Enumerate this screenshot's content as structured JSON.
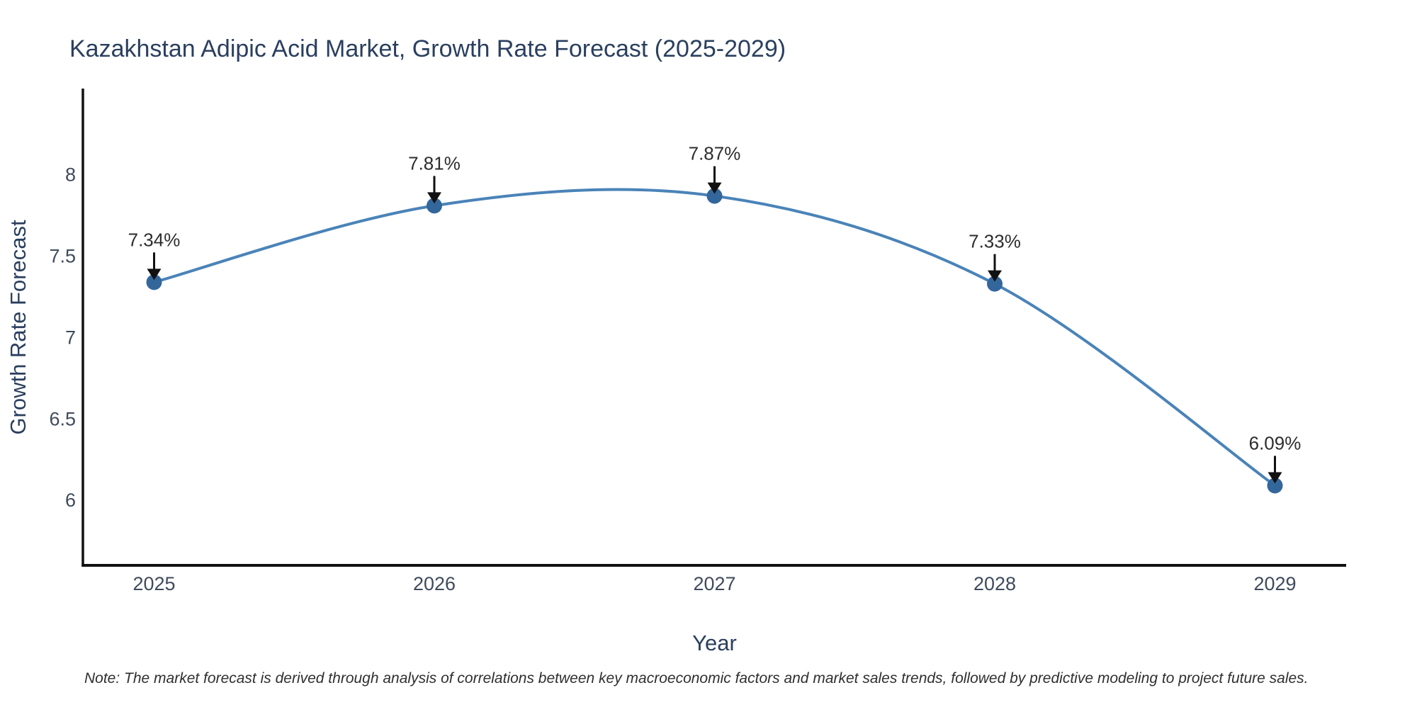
{
  "chart_data": {
    "type": "line",
    "title": "Kazakhstan Adipic Acid Market, Growth Rate Forecast (2025-2029)",
    "xlabel": "Year",
    "ylabel": "Growth Rate Forecast",
    "categories": [
      "2025",
      "2026",
      "2027",
      "2028",
      "2029"
    ],
    "values": [
      7.34,
      7.81,
      7.87,
      7.33,
      6.09
    ],
    "point_labels": [
      "7.34%",
      "7.81%",
      "7.87%",
      "7.33%",
      "6.09%"
    ],
    "y_ticks": [
      6,
      6.5,
      7,
      7.5,
      8
    ],
    "ylim": [
      5.6,
      8.53
    ],
    "line_shape": "spline",
    "markers": true,
    "grid": false,
    "legend_position": "none",
    "colors": {
      "line": "#4a83b8",
      "marker": "#33679b",
      "axis": "#111111",
      "arrow": "#111111",
      "annotation_text": "#2d2d2d",
      "title_text": "#2a3f5f"
    }
  },
  "note": {
    "text": "Note: The market forecast is derived through analysis of correlations between key macroeconomic factors and market sales trends, followed by predictive modeling to project future sales."
  }
}
